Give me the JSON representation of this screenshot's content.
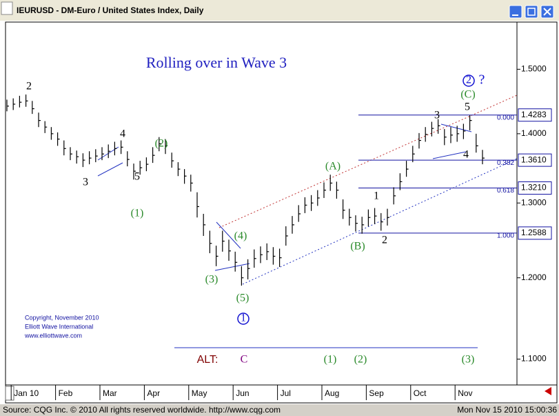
{
  "window_title": "IEURUSD - DM-Euro / United States Index, Daily",
  "chart_data": {
    "type": "hlc",
    "title": "Rolling over in Wave 3",
    "log_scale": true,
    "color": "#000000",
    "categories": [
      null,
      "Jan 10",
      null,
      null,
      null,
      null,
      null,
      null,
      "Feb",
      null,
      null,
      null,
      null,
      null,
      null,
      "Mar",
      null,
      null,
      null,
      null,
      null,
      null,
      "Apr",
      null,
      null,
      null,
      null,
      null,
      null,
      "May",
      null,
      null,
      null,
      null,
      null,
      null,
      "Jun",
      null,
      null,
      null,
      null,
      null,
      null,
      "Jul",
      null,
      null,
      null,
      null,
      null,
      null,
      "Aug",
      null,
      null,
      null,
      null,
      null,
      null,
      "Sep",
      null,
      null,
      null,
      null,
      null,
      null,
      "Oct",
      null,
      null,
      null,
      null,
      null,
      null,
      "Nov",
      null,
      null,
      null,
      null
    ],
    "high": [
      1.452,
      1.454,
      1.458,
      1.46,
      1.45,
      1.432,
      1.419,
      1.41,
      1.402,
      1.39,
      1.38,
      1.375,
      1.371,
      1.374,
      1.377,
      1.38,
      1.384,
      1.388,
      1.39,
      1.374,
      1.356,
      1.36,
      1.365,
      1.38,
      1.395,
      1.392,
      1.372,
      1.358,
      1.348,
      1.34,
      1.315,
      1.285,
      1.262,
      1.242,
      1.262,
      1.25,
      1.234,
      1.215,
      1.224,
      1.237,
      1.241,
      1.245,
      1.24,
      1.238,
      1.268,
      1.282,
      1.297,
      1.308,
      1.311,
      1.318,
      1.329,
      1.34,
      1.33,
      1.305,
      1.292,
      1.283,
      1.281,
      1.291,
      1.293,
      1.286,
      1.292,
      1.322,
      1.342,
      1.36,
      1.382,
      1.401,
      1.41,
      1.418,
      1.422,
      1.407,
      1.41,
      1.412,
      1.415,
      1.428,
      1.4,
      1.376
    ],
    "low": [
      1.434,
      1.436,
      1.44,
      1.441,
      1.43,
      1.41,
      1.401,
      1.391,
      1.382,
      1.368,
      1.361,
      1.356,
      1.351,
      1.355,
      1.358,
      1.361,
      1.364,
      1.368,
      1.37,
      1.352,
      1.333,
      1.34,
      1.345,
      1.357,
      1.374,
      1.37,
      1.35,
      1.338,
      1.327,
      1.316,
      1.28,
      1.255,
      1.232,
      1.215,
      1.234,
      1.222,
      1.208,
      1.19,
      1.198,
      1.213,
      1.219,
      1.223,
      1.217,
      1.214,
      1.242,
      1.258,
      1.274,
      1.286,
      1.289,
      1.296,
      1.307,
      1.317,
      1.306,
      1.278,
      1.269,
      1.261,
      1.258,
      1.268,
      1.271,
      1.262,
      1.269,
      1.298,
      1.318,
      1.337,
      1.358,
      1.378,
      1.388,
      1.396,
      1.4,
      1.383,
      1.386,
      1.388,
      1.392,
      1.405,
      1.372,
      1.355
    ],
    "close": [
      1.442,
      1.445,
      1.448,
      1.45,
      1.438,
      1.42,
      1.41,
      1.4,
      1.392,
      1.378,
      1.37,
      1.366,
      1.361,
      1.364,
      1.367,
      1.37,
      1.374,
      1.378,
      1.38,
      1.362,
      1.345,
      1.35,
      1.355,
      1.368,
      1.385,
      1.382,
      1.36,
      1.348,
      1.338,
      1.328,
      1.295,
      1.27,
      1.245,
      1.228,
      1.248,
      1.235,
      1.22,
      1.2,
      1.212,
      1.225,
      1.23,
      1.234,
      1.228,
      1.226,
      1.255,
      1.27,
      1.285,
      1.297,
      1.3,
      1.307,
      1.318,
      1.328,
      1.318,
      1.29,
      1.28,
      1.272,
      1.27,
      1.28,
      1.282,
      1.274,
      1.28,
      1.31,
      1.33,
      1.348,
      1.37,
      1.39,
      1.399,
      1.408,
      1.412,
      1.395,
      1.398,
      1.4,
      1.404,
      1.42,
      1.382,
      1.364
    ],
    "ylim": [
      1.07,
      1.58
    ],
    "yticks": [
      {
        "value": 1.1,
        "label": "1.1000"
      },
      {
        "value": 1.2,
        "label": "1.2000"
      },
      {
        "value": 1.3,
        "label": "1.3000"
      },
      {
        "value": 1.4,
        "label": "1.4000"
      },
      {
        "value": 1.5,
        "label": "1.5000"
      }
    ],
    "fib_levels": [
      {
        "value": 1.4283,
        "label": "1.4283",
        "ratio": "0.000"
      },
      {
        "value": 1.361,
        "label": "1.3610",
        "ratio": "0.382"
      },
      {
        "value": 1.321,
        "label": "1.3210",
        "ratio": "0.618"
      },
      {
        "value": 1.2588,
        "label": "1.2588",
        "ratio": "1.000"
      }
    ],
    "wave_labels": [
      "2",
      "4",
      "3",
      "5",
      "(1)",
      "(2)",
      "(4)",
      "(3)",
      "(5)",
      "1",
      "(A)",
      "(B)",
      "1",
      "2",
      "3",
      "4",
      "5",
      "(C)",
      "2",
      "?"
    ],
    "alt_labels": [
      "ALT:",
      "C",
      "(1)",
      "(2)",
      "(3)"
    ],
    "copyright": [
      "Copyright, November 2010",
      "Elliott Wave International",
      "www.elliottwave.com"
    ]
  },
  "footer": {
    "source": "Source: CQG Inc. © 2010 All rights reserved worldwide. http://www.cqg.com",
    "timestamp": "Mon Nov 15 2010 15:00:36"
  }
}
